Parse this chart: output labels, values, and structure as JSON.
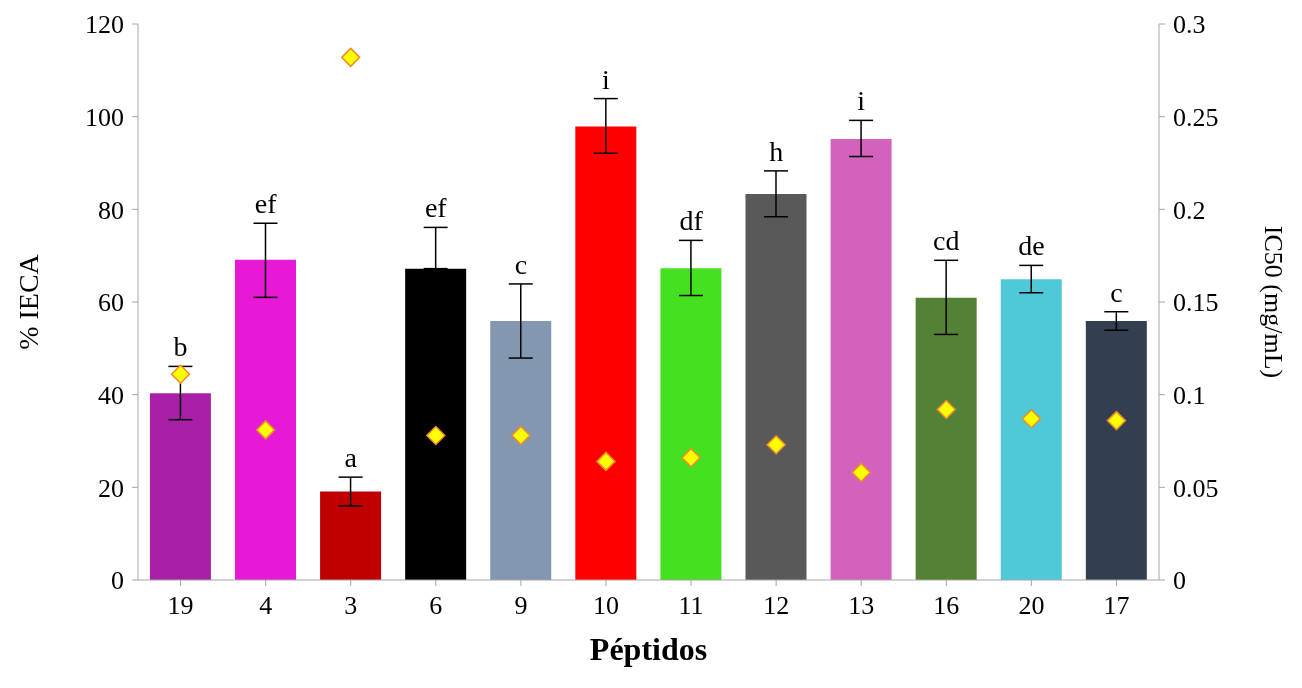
{
  "chart_data": {
    "type": "bar",
    "xlabel": "Péptidos",
    "ylabel": "% IECA",
    "y2label": "IC50 (mg/mL)",
    "categories": [
      "19",
      "4",
      "3",
      "6",
      "9",
      "10",
      "11",
      "12",
      "13",
      "16",
      "20",
      "17"
    ],
    "series": [
      {
        "colors": [
          "#a81fa8",
          "#e61ad6",
          "#c00000",
          "#000000",
          "#8497b0",
          "#ff0000",
          "#45e020",
          "#595959",
          "#d262bb",
          "#538135",
          "#4fc8d8",
          "#333f50"
        ],
        "values": [
          40.3,
          69.1,
          19.1,
          67.2,
          55.9,
          97.9,
          67.3,
          83.3,
          95.2,
          60.9,
          64.9,
          55.9
        ],
        "errors": [
          [
            34.6,
            46.1
          ],
          [
            61.0,
            77.0
          ],
          [
            16.0,
            22.2
          ],
          [
            67.2,
            76.1
          ],
          [
            47.9,
            63.9
          ],
          [
            92.1,
            103.9
          ],
          [
            61.4,
            73.3
          ],
          [
            78.4,
            88.3
          ],
          [
            91.4,
            99.2
          ],
          [
            53.0,
            69.0
          ],
          [
            62.0,
            67.9
          ],
          [
            53.9,
            57.9
          ]
        ]
      },
      {
        "type": "scatter",
        "axis": "y2",
        "color": "#ffff00",
        "marker": "diamond",
        "values": [
          0.111,
          0.081,
          0.282,
          0.078,
          0.078,
          0.064,
          0.066,
          0.073,
          0.058,
          0.092,
          0.087,
          0.086
        ]
      }
    ],
    "ylim": [
      0,
      120
    ],
    "yticks": [
      0,
      20,
      40,
      60,
      80,
      100,
      120
    ],
    "y2lim": [
      0,
      0.3
    ],
    "y2ticks": [
      0,
      0.05,
      0.1,
      0.15,
      0.2,
      0.25,
      0.3
    ],
    "annotations": [
      {
        "text": "b",
        "x": "19",
        "y": 46.1
      },
      {
        "text": "ef",
        "x": "4",
        "y": 77.0
      },
      {
        "text": "a",
        "x": "3",
        "y": 22.2
      },
      {
        "text": "ef",
        "x": "6",
        "y": 76.1
      },
      {
        "text": "c",
        "x": "9",
        "y": 63.9
      },
      {
        "text": "i",
        "x": "10",
        "y": 103.9
      },
      {
        "text": "df",
        "x": "11",
        "y": 73.3
      },
      {
        "text": "h",
        "x": "12",
        "y": 88.3
      },
      {
        "text": "i",
        "x": "13",
        "y": 99.2
      },
      {
        "text": "cd",
        "x": "16",
        "y": 69.0
      },
      {
        "text": "de",
        "x": "20",
        "y": 67.9
      },
      {
        "text": "c",
        "x": "17",
        "y": 57.9
      }
    ],
    "grid": false,
    "legend": false
  }
}
